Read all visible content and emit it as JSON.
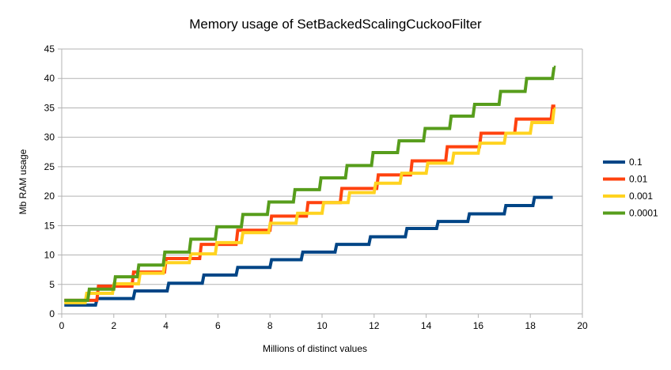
{
  "chart_data": {
    "type": "line",
    "title": "Memory usage of SetBackedScalingCuckooFilter",
    "xlabel": "Millions of distinct values",
    "ylabel": "Mb RAM usage",
    "xlim": [
      0,
      20
    ],
    "ylim": [
      0,
      45
    ],
    "xticks": [
      "0",
      "2",
      "4",
      "6",
      "8",
      "10",
      "12",
      "14",
      "16",
      "18",
      "20"
    ],
    "yticks": [
      "0",
      "5",
      "10",
      "15",
      "20",
      "25",
      "30",
      "35",
      "40",
      "45"
    ],
    "grid": true,
    "legend": "right",
    "step": true,
    "series": [
      {
        "name": "0.1",
        "color": "#004586",
        "x": [
          0.1,
          1.3,
          2.75,
          4.05,
          5.4,
          6.7,
          8.0,
          9.2,
          10.5,
          11.8,
          13.2,
          14.4,
          15.6,
          17.0,
          18.1,
          18.8
        ],
        "y": [
          1.5,
          2.6,
          3.9,
          5.2,
          6.6,
          7.9,
          9.2,
          10.5,
          11.8,
          13.1,
          14.5,
          15.7,
          17.0,
          18.4,
          19.8,
          19.8
        ]
      },
      {
        "name": "0.01",
        "color": "#ff420e",
        "x": [
          0.1,
          1.35,
          2.7,
          3.95,
          5.3,
          6.7,
          8.0,
          9.4,
          10.7,
          12.1,
          13.4,
          14.75,
          16.05,
          17.4,
          18.8,
          18.9
        ],
        "y": [
          2.3,
          4.7,
          7.1,
          9.4,
          11.8,
          14.2,
          16.6,
          18.9,
          21.3,
          23.6,
          26.0,
          28.4,
          30.7,
          33.1,
          35.3,
          35.3
        ]
      },
      {
        "name": "0.001",
        "color": "#ffd320",
        "x": [
          0.1,
          0.9,
          1.95,
          2.95,
          3.9,
          4.9,
          5.9,
          6.9,
          7.95,
          9.0,
          10.0,
          11.0,
          12.0,
          13.0,
          14.0,
          15.0,
          16.0,
          17.0,
          18.0,
          18.85,
          18.9
        ],
        "y": [
          1.9,
          3.5,
          5.1,
          6.9,
          8.7,
          10.2,
          12.1,
          13.8,
          15.4,
          17.1,
          18.9,
          20.6,
          22.2,
          23.9,
          25.6,
          27.3,
          29.0,
          30.7,
          32.5,
          34.8,
          34.8
        ]
      },
      {
        "name": "0.0001",
        "color": "#579d1c",
        "x": [
          0.1,
          1.0,
          2.0,
          2.9,
          3.9,
          4.9,
          5.9,
          6.9,
          7.9,
          8.9,
          9.9,
          10.9,
          11.9,
          12.9,
          13.9,
          14.9,
          15.8,
          16.8,
          17.8,
          18.85,
          18.9
        ],
        "y": [
          2.3,
          4.2,
          6.3,
          8.3,
          10.5,
          12.7,
          14.8,
          16.9,
          19.0,
          21.1,
          23.1,
          25.2,
          27.4,
          29.4,
          31.5,
          33.6,
          35.6,
          37.8,
          40.0,
          41.9,
          41.9
        ]
      }
    ]
  }
}
